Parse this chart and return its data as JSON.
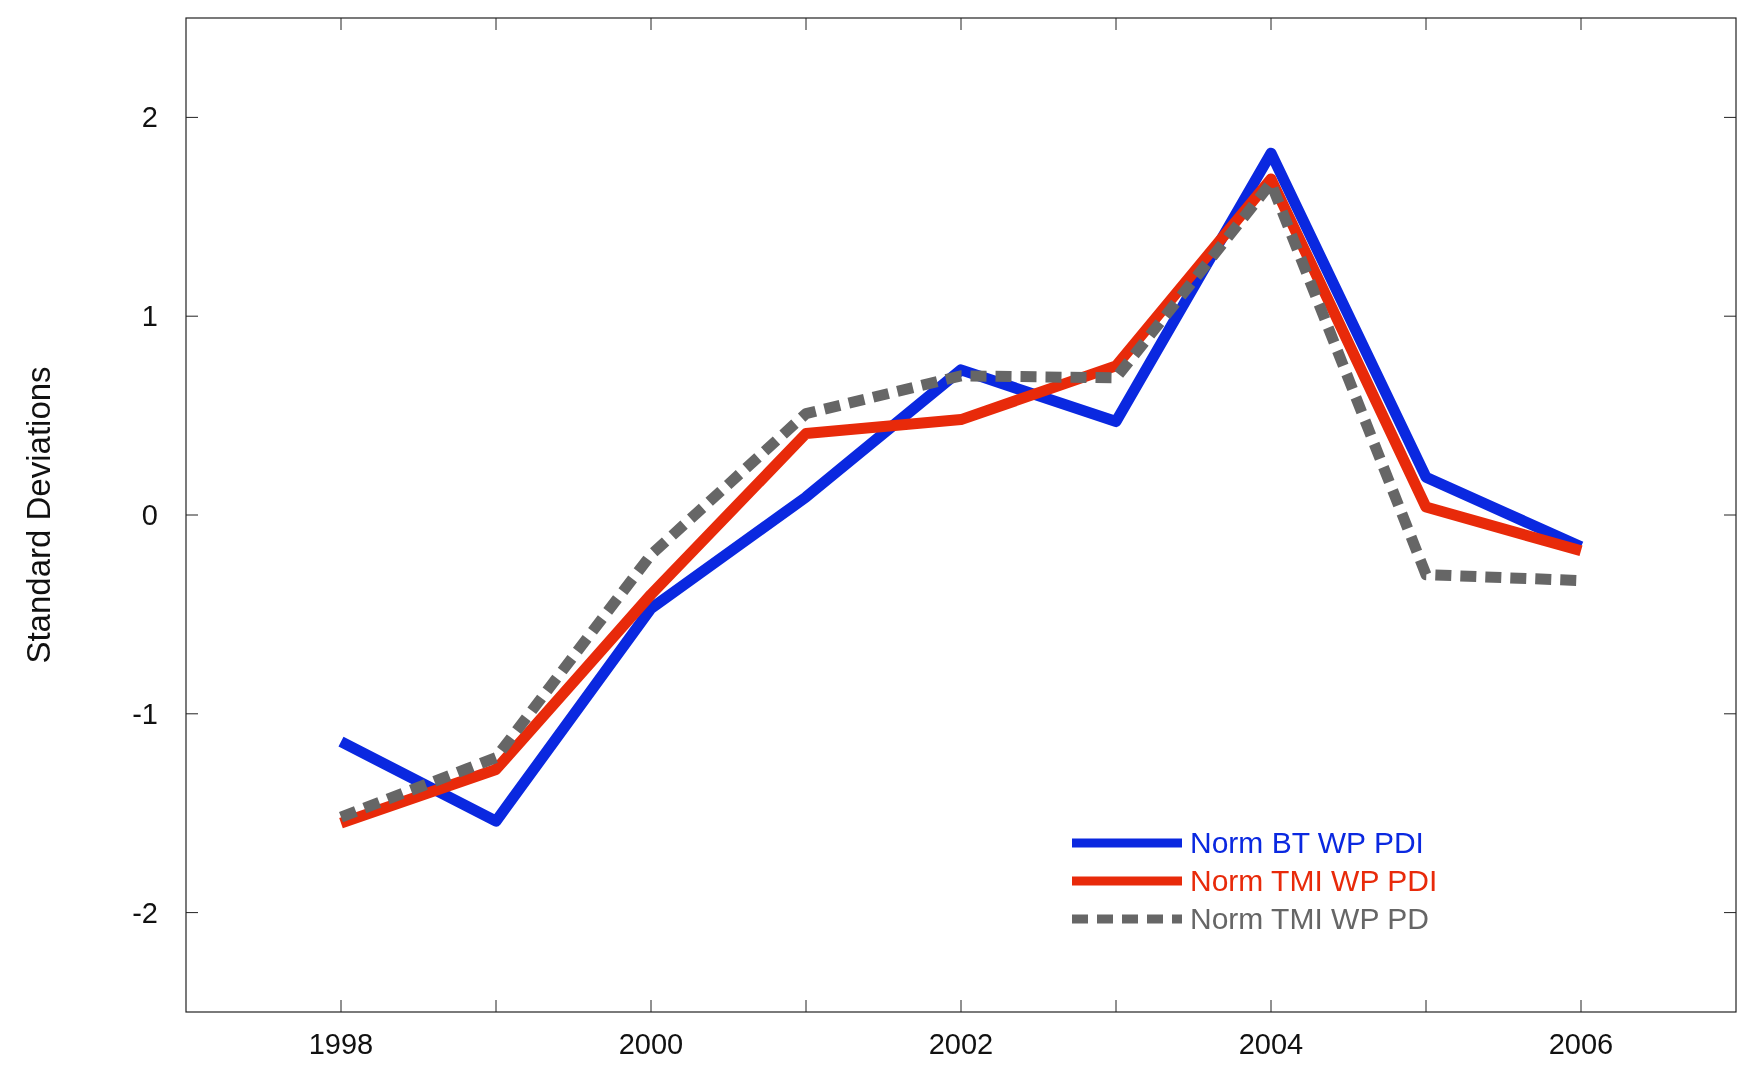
{
  "chart_data": {
    "type": "line",
    "ylabel": "Standard Deviations",
    "x": [
      1998,
      1999,
      2000,
      2001,
      2002,
      2003,
      2004,
      2005,
      2006
    ],
    "series": [
      {
        "name": "Norm BT WP PDI",
        "color": "#0a28e0",
        "line_style": "solid",
        "values": [
          -1.14,
          -1.54,
          -0.47,
          0.09,
          0.73,
          0.47,
          1.82,
          0.19,
          -0.16
        ]
      },
      {
        "name": "Norm TMI WP PDI",
        "color": "#e82a0a",
        "line_style": "solid",
        "values": [
          -1.55,
          -1.28,
          -0.4,
          0.41,
          0.48,
          0.75,
          1.69,
          0.04,
          -0.18
        ]
      },
      {
        "name": "Norm TMI WP PD",
        "color": "#666666",
        "line_style": "dashed",
        "values": [
          -1.52,
          -1.22,
          -0.2,
          0.51,
          0.7,
          0.69,
          1.67,
          -0.3,
          -0.33
        ]
      }
    ],
    "xlim": [
      1997,
      2007
    ],
    "xticks": [
      1998,
      {
        "value": 1999,
        "label": null
      },
      2000,
      {
        "value": 2001,
        "label": null
      },
      2002,
      {
        "value": 2003,
        "label": null
      },
      2004,
      {
        "value": 2005,
        "label": null
      },
      2006
    ],
    "ylim": [
      -2.5,
      2.5
    ],
    "yticks": [
      -2,
      -1,
      0,
      1,
      2
    ],
    "grid": false,
    "legend": "bottom right",
    "marker": "none"
  }
}
